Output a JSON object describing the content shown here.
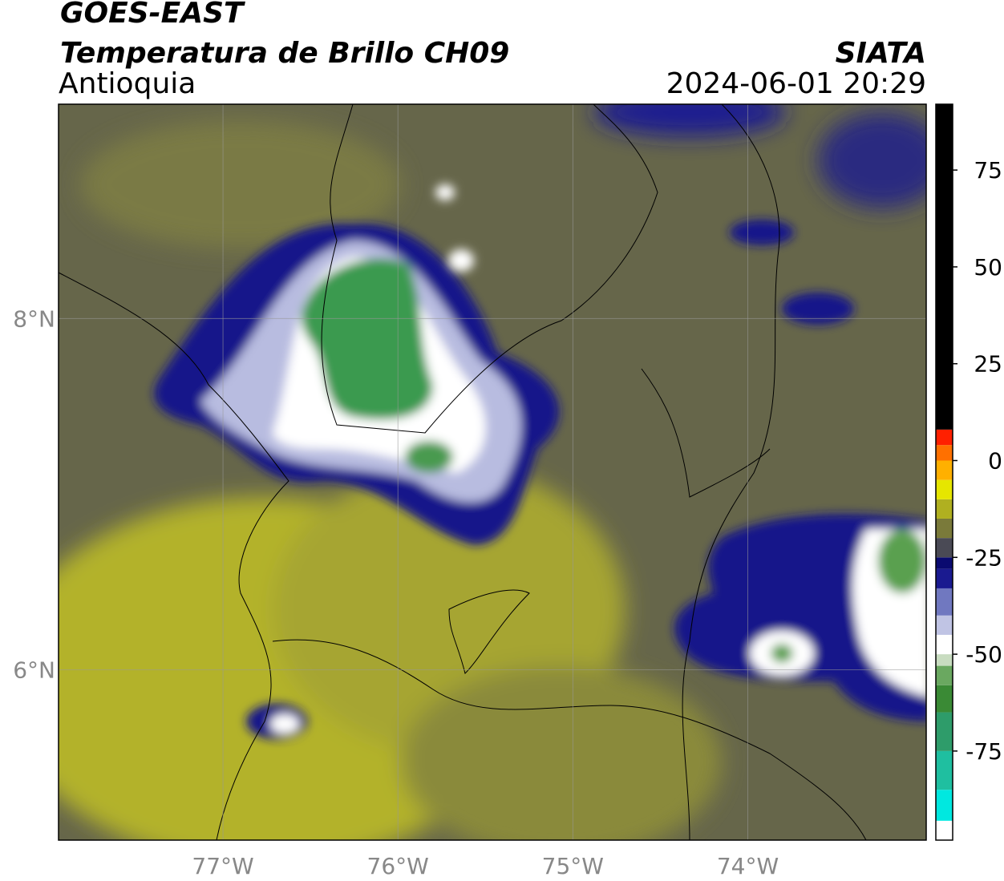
{
  "header": {
    "satellite": "GOES-EAST",
    "product": "Temperatura de Brillo CH09",
    "region": "Antioquia",
    "agency": "SIATA",
    "timestamp": "2024-06-01 20:29"
  },
  "map": {
    "xlim": [
      -77.94,
      -72.98
    ],
    "ylim": [
      5.03,
      9.22
    ],
    "xticks": [
      {
        "value": -77,
        "label": "77°W"
      },
      {
        "value": -76,
        "label": "76°W"
      },
      {
        "value": -75,
        "label": "75°W"
      },
      {
        "value": -74,
        "label": "74°W"
      }
    ],
    "yticks": [
      {
        "value": 8,
        "label": "8°N"
      },
      {
        "value": 6,
        "label": "6°N"
      }
    ],
    "grid": true
  },
  "colorbar": {
    "range": [
      -98,
      92
    ],
    "ticks": [
      75,
      50,
      25,
      0,
      -25,
      -50,
      -75
    ],
    "stops": [
      {
        "value": -98,
        "color": "#ffffff"
      },
      {
        "value": -93,
        "color": "#00e8e0"
      },
      {
        "value": -85,
        "color": "#1fbfa0"
      },
      {
        "value": -75,
        "color": "#2e9c6a"
      },
      {
        "value": -65,
        "color": "#3a8a35"
      },
      {
        "value": -58,
        "color": "#6aa860"
      },
      {
        "value": -53,
        "color": "#c8dcc0"
      },
      {
        "value": -50,
        "color": "#ffffff"
      },
      {
        "value": -45,
        "color": "#c0c4e4"
      },
      {
        "value": -40,
        "color": "#7078c0"
      },
      {
        "value": -33,
        "color": "#1a1a90"
      },
      {
        "value": -28,
        "color": "#0a0a70"
      },
      {
        "value": -25,
        "color": "#4a4a55"
      },
      {
        "value": -20,
        "color": "#7a7a3a"
      },
      {
        "value": -15,
        "color": "#b0b020"
      },
      {
        "value": -10,
        "color": "#e6e600"
      },
      {
        "value": -5,
        "color": "#ffb000"
      },
      {
        "value": 0,
        "color": "#ff7000"
      },
      {
        "value": 4,
        "color": "#ff2000"
      },
      {
        "value": 8,
        "color": "#000000"
      }
    ]
  }
}
